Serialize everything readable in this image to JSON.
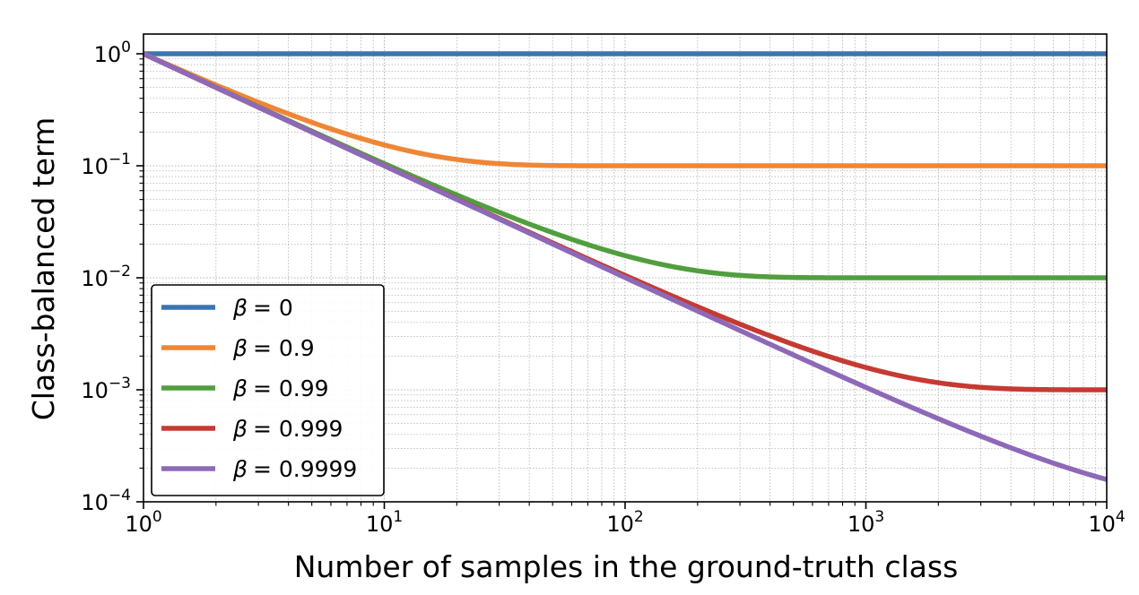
{
  "chart_data": {
    "type": "line",
    "title": "",
    "xlabel": "Number of samples in the ground-truth class",
    "ylabel": "Class-balanced term",
    "xscale": "log",
    "yscale": "log",
    "xlim": [
      1,
      10000
    ],
    "ylim": [
      0.0001,
      1.5
    ],
    "x_ticks": [
      {
        "base": "10",
        "exp": "0",
        "value": 1
      },
      {
        "base": "10",
        "exp": "1",
        "value": 10
      },
      {
        "base": "10",
        "exp": "2",
        "value": 100
      },
      {
        "base": "10",
        "exp": "3",
        "value": 1000
      },
      {
        "base": "10",
        "exp": "4",
        "value": 10000
      }
    ],
    "y_ticks": [
      {
        "base": "10",
        "exp": "0",
        "value": 1
      },
      {
        "base": "10",
        "exp": "−1",
        "value": 0.1
      },
      {
        "base": "10",
        "exp": "−2",
        "value": 0.01
      },
      {
        "base": "10",
        "exp": "−3",
        "value": 0.001
      },
      {
        "base": "10",
        "exp": "−4",
        "value": 0.0001
      }
    ],
    "grid": true,
    "legend_position": "lower-left",
    "series": [
      {
        "name": "β = 0",
        "beta_symbol": "β",
        "beta_value": "= 0",
        "beta": 0,
        "color": "#3a75b0"
      },
      {
        "name": "β = 0.9",
        "beta_symbol": "β",
        "beta_value": "= 0.9",
        "beta": 0.9,
        "color": "#ef8636"
      },
      {
        "name": "β = 0.99",
        "beta_symbol": "β",
        "beta_value": "= 0.99",
        "beta": 0.99,
        "color": "#519e3e"
      },
      {
        "name": "β = 0.999",
        "beta_symbol": "β",
        "beta_value": "= 0.999",
        "beta": 0.999,
        "color": "#c53a32"
      },
      {
        "name": "β = 0.9999",
        "beta_symbol": "β",
        "beta_value": "= 0.9999",
        "beta": 0.9999,
        "color": "#8d69b8"
      }
    ]
  }
}
